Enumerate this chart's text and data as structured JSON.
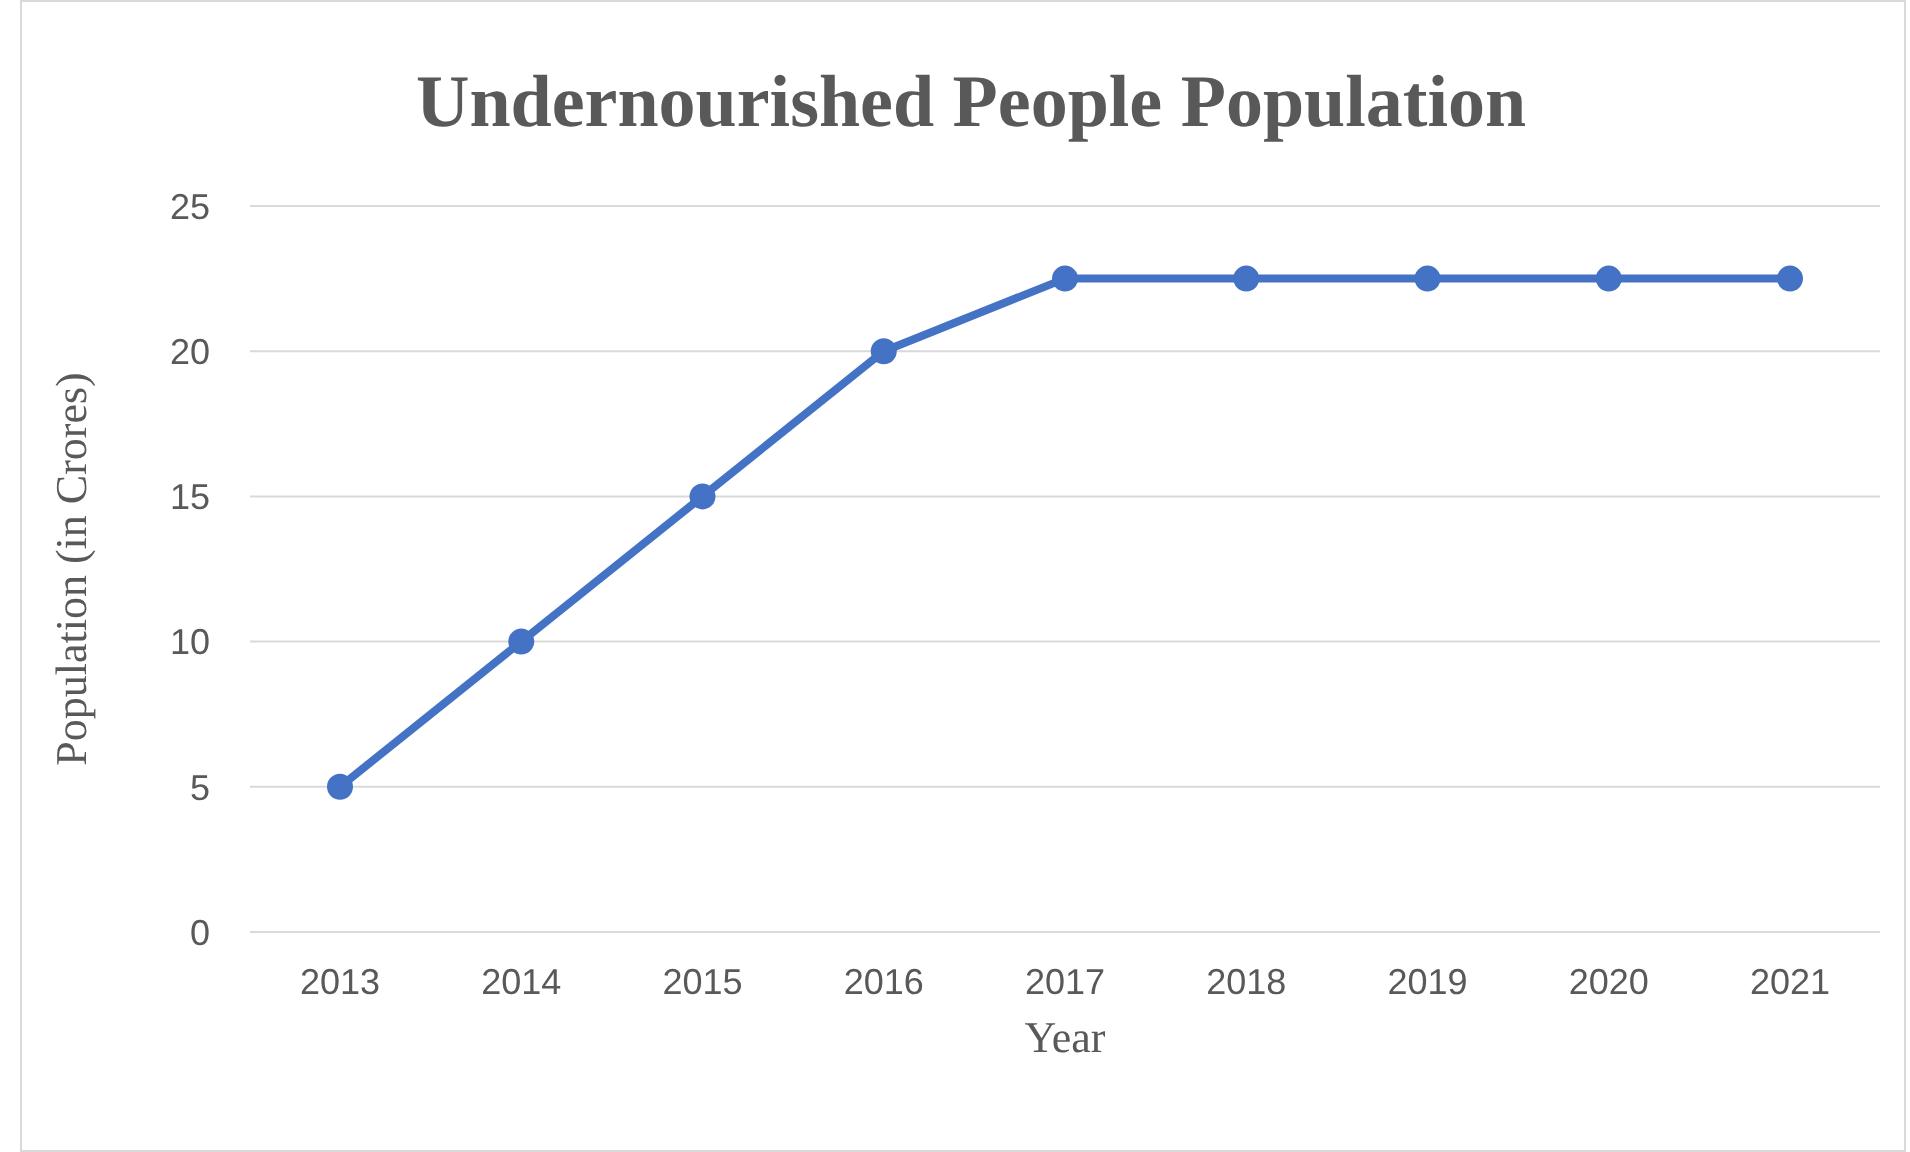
{
  "chart_data": {
    "type": "line",
    "title": "Undernourished People Population",
    "xlabel": "Year",
    "ylabel": "Population (in Crores)",
    "categories": [
      "2013",
      "2014",
      "2015",
      "2016",
      "2017",
      "2018",
      "2019",
      "2020",
      "2021"
    ],
    "series": [
      {
        "color": "#4472c4",
        "values": [
          5,
          10,
          15,
          20,
          22.5,
          22.5,
          22.5,
          22.5,
          22.5
        ]
      }
    ],
    "ylim": [
      0,
      25
    ],
    "yticks": [
      0,
      5,
      10,
      15,
      20,
      25
    ],
    "grid": "y",
    "marker": "circle",
    "line_style": "solid"
  }
}
